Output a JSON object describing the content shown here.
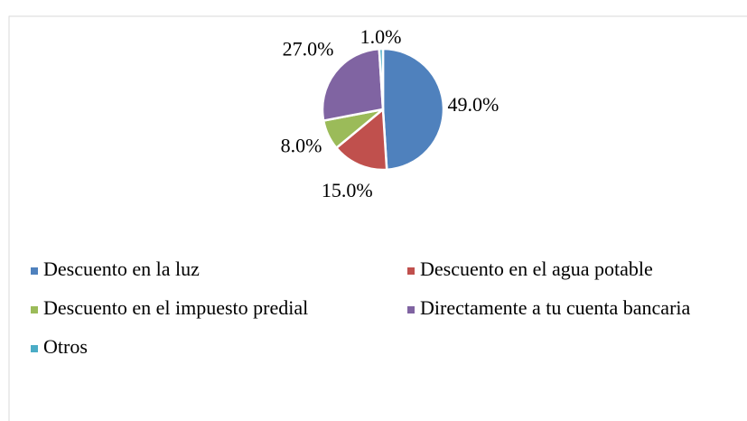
{
  "chart_data": {
    "type": "pie",
    "categories": [
      "Descuento en la luz",
      "Descuento en el agua potable",
      "Descuento en el impuesto predial",
      "Directamente a tu cuenta bancaria",
      "Otros"
    ],
    "values": [
      49,
      15,
      8,
      27,
      1
    ],
    "value_labels": [
      "49.0%",
      "15.0%",
      "8.0%",
      "27.0%",
      "1.0%"
    ],
    "colors": [
      "#4f81bd",
      "#c0504d",
      "#9bbb59",
      "#8064a2",
      "#4bacc6"
    ],
    "legend": "bottom"
  }
}
